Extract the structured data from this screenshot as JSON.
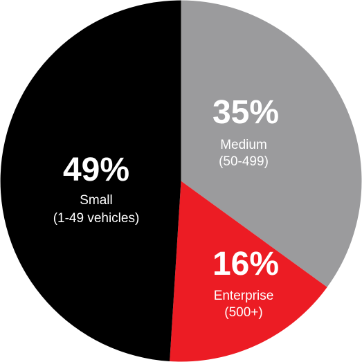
{
  "chart_data": {
    "type": "pie",
    "title": "",
    "start_angle_deg": 0,
    "direction": "clockwise",
    "legend": "none",
    "slices": [
      {
        "label": "Medium",
        "sublabel": "(50-499)",
        "value": 35,
        "value_label": "35%",
        "color": "#9b9b9d"
      },
      {
        "label": "Enterprise",
        "sublabel": "(500+)",
        "value": 16,
        "value_label": "16%",
        "color": "#ec1c24"
      },
      {
        "label": "Small",
        "sublabel": "(1-49 vehicles)",
        "value": 49,
        "value_label": "49%",
        "color": "#000000"
      }
    ]
  }
}
